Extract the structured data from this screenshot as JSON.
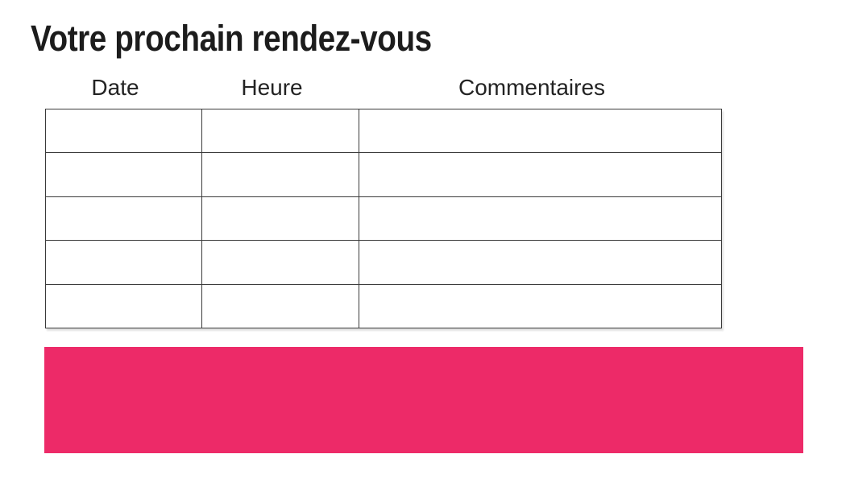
{
  "document": {
    "title": "Votre prochain rendez-vous"
  },
  "table": {
    "columns": [
      {
        "label": "Date"
      },
      {
        "label": "Heure"
      },
      {
        "label": "Commentaires"
      }
    ],
    "rows": [
      [
        "",
        "",
        ""
      ],
      [
        "",
        "",
        ""
      ],
      [
        "",
        "",
        ""
      ],
      [
        "",
        "",
        ""
      ],
      [
        "",
        "",
        ""
      ]
    ]
  },
  "colors": {
    "accent_pink": "#ED2A68",
    "table_border": "#3A3A3A",
    "title_text": "#1C1C1C",
    "header_text": "#232323"
  }
}
